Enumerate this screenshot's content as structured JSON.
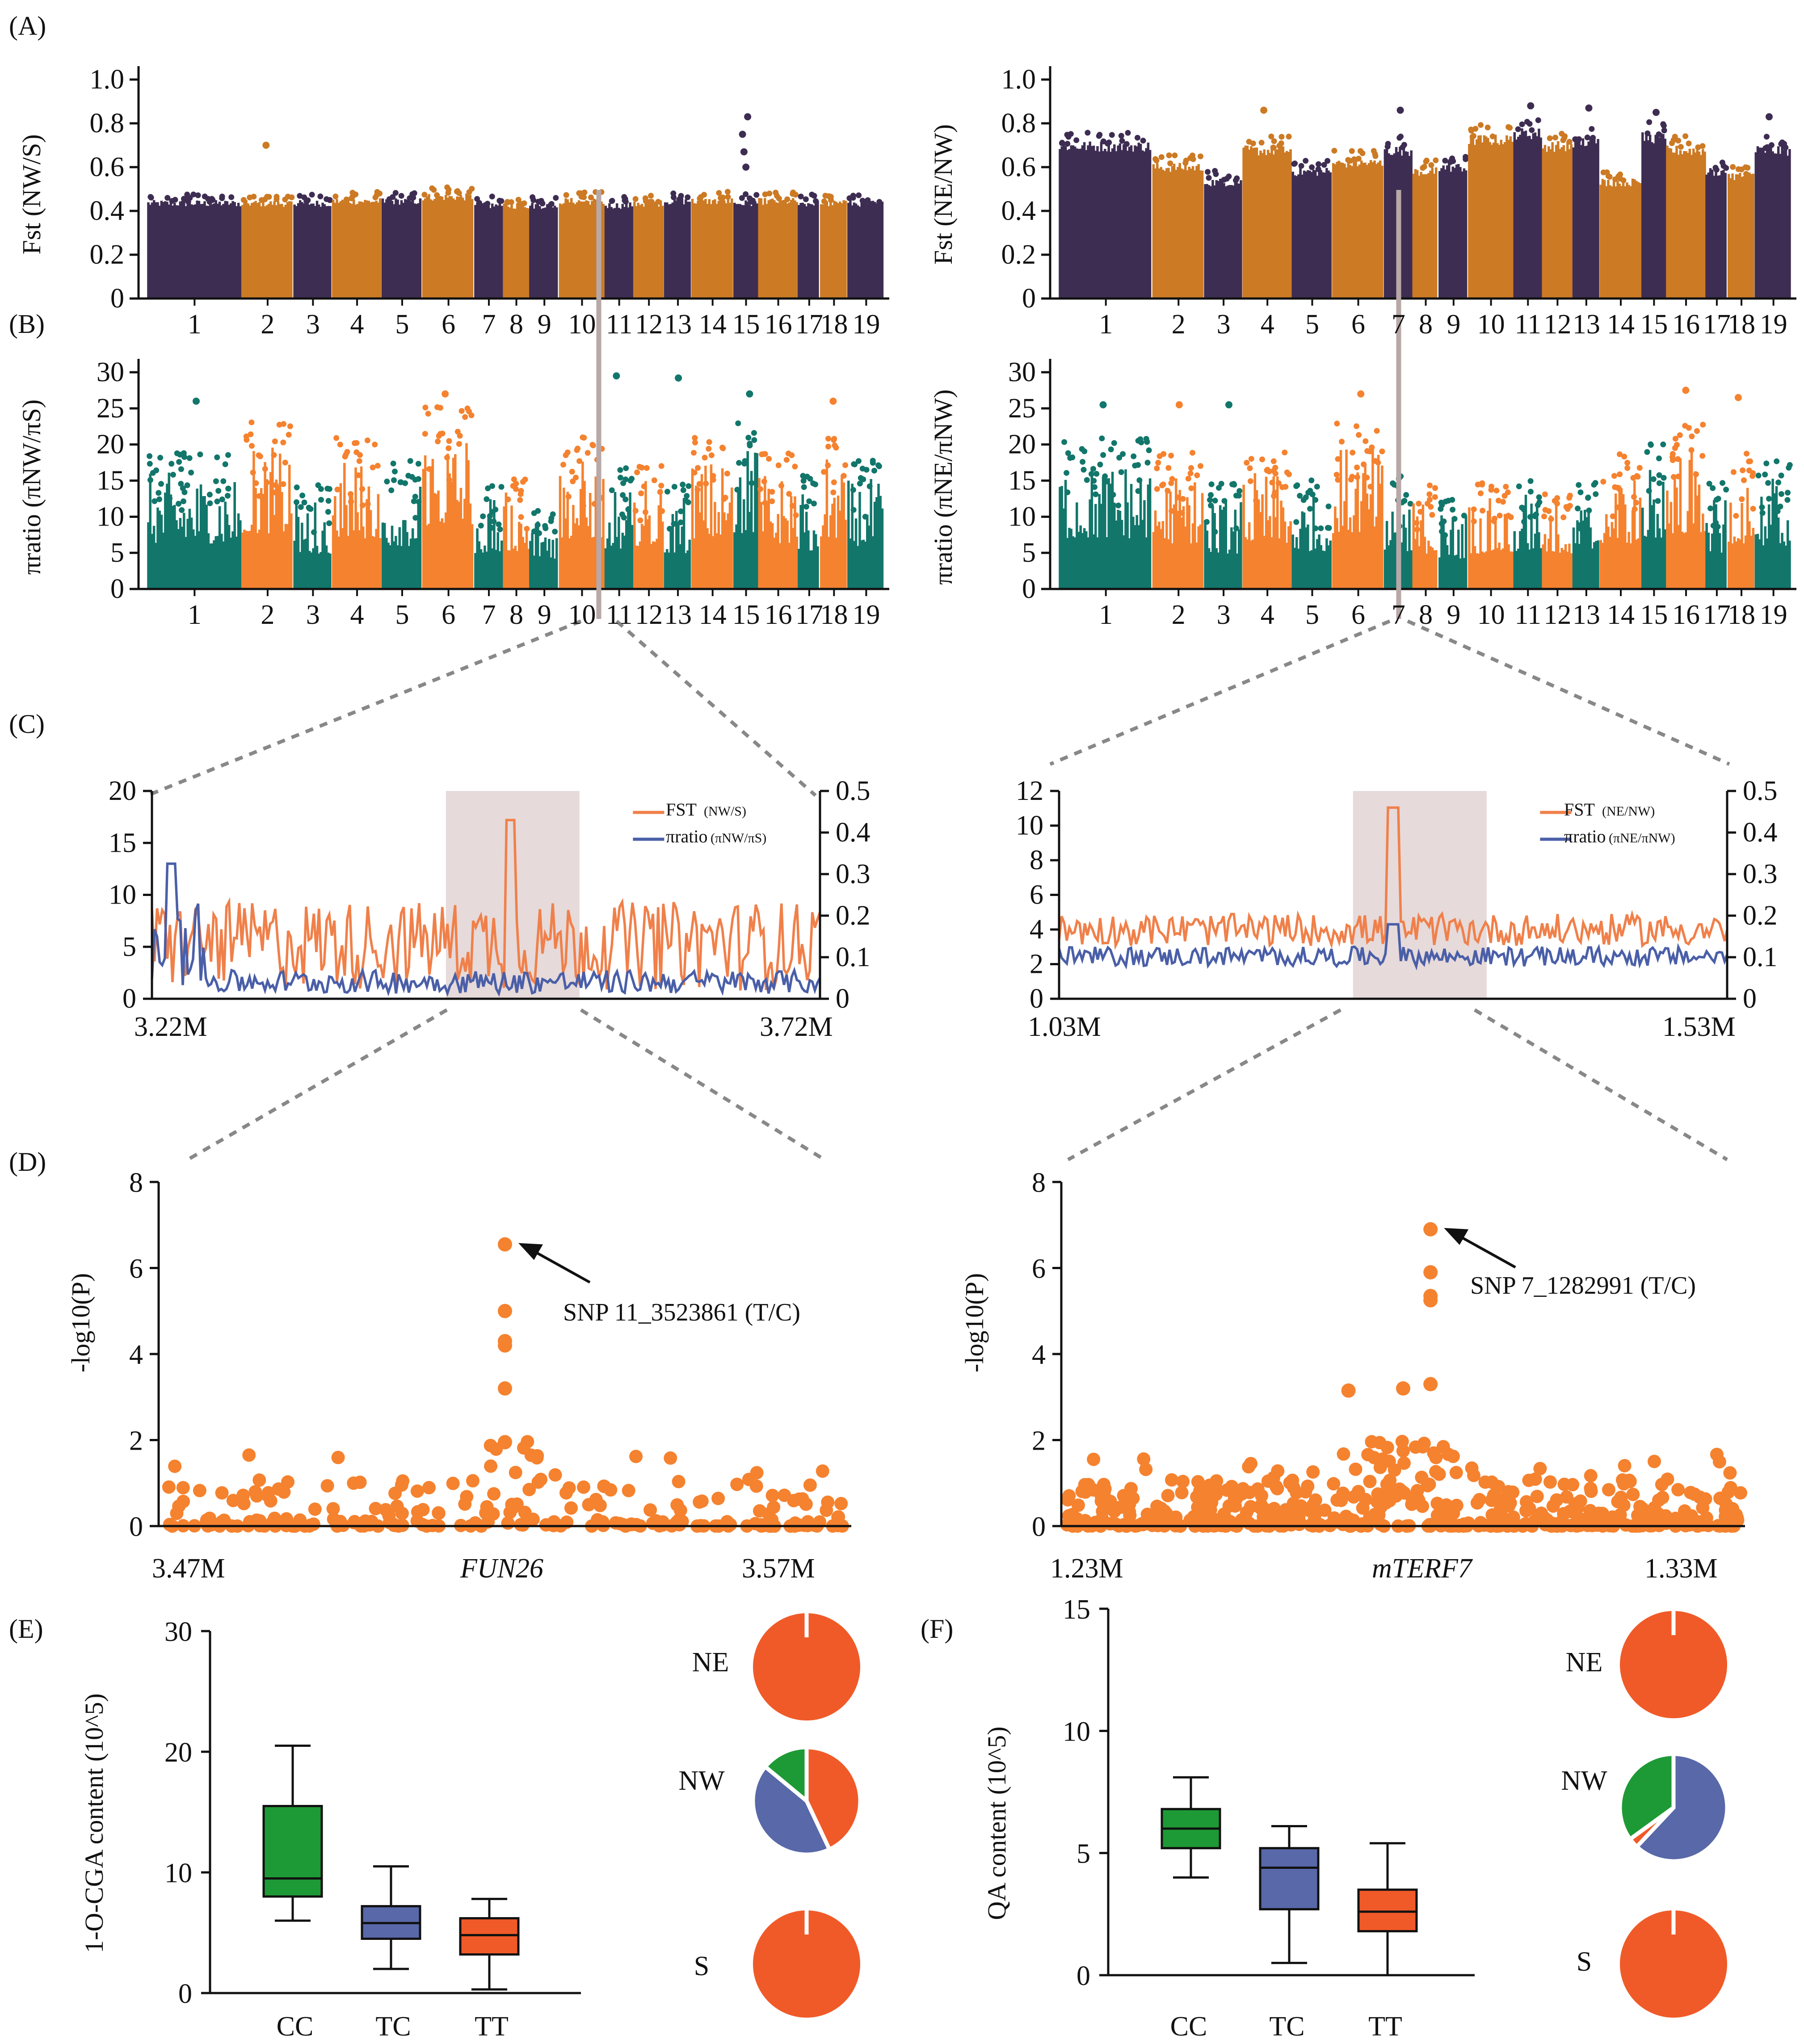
{
  "colors": {
    "dark_purple": "#3e2d52",
    "ochre": "#cc7a24",
    "teal": "#12766b",
    "orange": "#f5822f",
    "line_orange": "#f0804a",
    "line_blue": "#4a5fa8",
    "box_green": "#1d9a35",
    "box_blue": "#5868a8",
    "box_orange": "#f05a28",
    "highlight": "#e6dada",
    "guide": "#b8a8a8"
  },
  "chart_data": [
    {
      "id": "A-left",
      "panel_label": "(A)",
      "type": "scatter",
      "ylabel": "Fst (NW/S)",
      "ylim": [
        0,
        1.0
      ],
      "yticks": [
        "0",
        "0.2",
        "0.4",
        "0.6",
        "0.8",
        "1.0"
      ],
      "chromosomes": [
        "1",
        "2",
        "3",
        "4",
        "5",
        "6",
        "7",
        "8",
        "9",
        "10",
        "11",
        "12",
        "13",
        "14",
        "15",
        "16",
        "17",
        "18",
        "19"
      ],
      "chrom_widths": [
        1.9,
        1.05,
        0.78,
        1.0,
        0.82,
        1.05,
        0.58,
        0.53,
        0.6,
        0.92,
        0.58,
        0.62,
        0.55,
        0.85,
        0.5,
        0.8,
        0.45,
        0.55,
        0.75
      ],
      "baseline": [
        0.45,
        0.45,
        0.45,
        0.46,
        0.46,
        0.48,
        0.44,
        0.44,
        0.44,
        0.46,
        0.44,
        0.45,
        0.46,
        0.46,
        0.45,
        0.46,
        0.45,
        0.45,
        0.45
      ],
      "outliers": [
        {
          "chr": "2",
          "value": 0.7
        },
        {
          "chr": "15",
          "value": 0.83
        },
        {
          "chr": "15",
          "value": 0.75
        },
        {
          "chr": "15",
          "value": 0.67
        },
        {
          "chr": "15",
          "value": 0.6
        }
      ],
      "palette": [
        "dark_purple",
        "ochre"
      ]
    },
    {
      "id": "A-right",
      "type": "scatter",
      "ylabel": "Fst (NE/NW)",
      "ylim": [
        0,
        1.0
      ],
      "yticks": [
        "0",
        "0.2",
        "0.4",
        "0.6",
        "0.8",
        "1.0"
      ],
      "chromosomes": [
        "1",
        "2",
        "3",
        "4",
        "5",
        "6",
        "7",
        "8",
        "9",
        "10",
        "11",
        "12",
        "13",
        "14",
        "15",
        "16",
        "17",
        "18",
        "19"
      ],
      "chrom_widths": [
        1.9,
        1.05,
        0.78,
        1.0,
        0.82,
        1.05,
        0.58,
        0.53,
        0.6,
        0.92,
        0.58,
        0.62,
        0.55,
        0.85,
        0.5,
        0.8,
        0.45,
        0.55,
        0.75
      ],
      "baseline": [
        0.72,
        0.62,
        0.55,
        0.7,
        0.6,
        0.64,
        0.7,
        0.6,
        0.62,
        0.75,
        0.78,
        0.72,
        0.74,
        0.55,
        0.76,
        0.7,
        0.6,
        0.58,
        0.7
      ],
      "outliers": [
        {
          "chr": "4",
          "value": 0.86
        },
        {
          "chr": "7",
          "value": 0.86
        },
        {
          "chr": "11",
          "value": 0.88
        },
        {
          "chr": "13",
          "value": 0.87
        },
        {
          "chr": "15",
          "value": 0.85
        },
        {
          "chr": "19",
          "value": 0.83
        }
      ],
      "palette": [
        "dark_purple",
        "ochre"
      ]
    },
    {
      "id": "B-left",
      "panel_label": "(B)",
      "type": "scatter",
      "ylabel": "πratio  (πNW/πS)",
      "ylim": [
        0,
        30
      ],
      "yticks": [
        "0",
        "5",
        "10",
        "15",
        "20",
        "25",
        "30"
      ],
      "chromosomes": [
        "1",
        "2",
        "3",
        "4",
        "5",
        "6",
        "7",
        "8",
        "9",
        "10",
        "11",
        "12",
        "13",
        "14",
        "15",
        "16",
        "17",
        "18",
        "19"
      ],
      "chrom_widths": [
        1.9,
        1.05,
        0.78,
        1.0,
        0.82,
        1.05,
        0.58,
        0.53,
        0.6,
        0.92,
        0.58,
        0.62,
        0.55,
        0.85,
        0.5,
        0.8,
        0.45,
        0.55,
        0.75
      ],
      "baseline": [
        18,
        22,
        14,
        20,
        17,
        25,
        14,
        15,
        12,
        20,
        16,
        17,
        14,
        20,
        22,
        18,
        15,
        20,
        17
      ],
      "outliers": [
        {
          "chr": "11",
          "value": 29.5
        },
        {
          "chr": "13",
          "value": 29.2
        },
        {
          "chr": "6",
          "value": 27
        },
        {
          "chr": "15",
          "value": 27
        },
        {
          "chr": "1",
          "value": 26
        },
        {
          "chr": "18",
          "value": 26
        }
      ],
      "palette": [
        "teal",
        "orange"
      ]
    },
    {
      "id": "B-right",
      "type": "scatter",
      "ylabel": "πratio  (πNE/πNW)",
      "ylim": [
        0,
        30
      ],
      "yticks": [
        "0",
        "5",
        "10",
        "15",
        "20",
        "25",
        "30"
      ],
      "chromosomes": [
        "1",
        "2",
        "3",
        "4",
        "5",
        "6",
        "7",
        "8",
        "9",
        "10",
        "11",
        "12",
        "13",
        "14",
        "15",
        "16",
        "17",
        "18",
        "19"
      ],
      "chrom_widths": [
        1.9,
        1.05,
        0.78,
        1.0,
        0.82,
        1.05,
        0.58,
        0.53,
        0.6,
        0.92,
        0.58,
        0.62,
        0.55,
        0.85,
        0.5,
        0.8,
        0.45,
        0.55,
        0.75
      ],
      "baseline": [
        20,
        18,
        14,
        18,
        15,
        22,
        15,
        14,
        12,
        14,
        15,
        14,
        14,
        18,
        20,
        22,
        14,
        18,
        17
      ],
      "outliers": [
        {
          "chr": "6",
          "value": 27
        },
        {
          "chr": "16",
          "value": 27.5
        },
        {
          "chr": "18",
          "value": 26.5
        },
        {
          "chr": "1",
          "value": 25.5
        },
        {
          "chr": "2",
          "value": 25.5
        },
        {
          "chr": "3",
          "value": 25.5
        }
      ],
      "palette": [
        "teal",
        "orange"
      ]
    },
    {
      "id": "C-left",
      "panel_label": "(C)",
      "type": "line",
      "xlabels": [
        "3.22M",
        "3.72M"
      ],
      "yticks_left": [
        "0",
        "5",
        "10",
        "15",
        "20"
      ],
      "ylim_left": [
        0,
        20
      ],
      "yticks_right": [
        "0",
        "0.1",
        "0.2",
        "0.3",
        "0.4",
        "0.5"
      ],
      "ylim_right": [
        0,
        0.5
      ],
      "highlight": [
        0.44,
        0.64
      ],
      "series": [
        {
          "name": "FST",
          "legend_main": "FST",
          "legend_sub": "(NW/S)",
          "color": "line_orange",
          "axis": "right",
          "peak": 0.43,
          "peak_at": 0.535,
          "base": 0.18
        },
        {
          "name": "πratio",
          "legend_main": "πratio",
          "legend_sub": "(πNW/πS)",
          "color": "line_blue",
          "axis": "left",
          "peak": 13,
          "peak_at": 0.03,
          "base": 2.5
        }
      ]
    },
    {
      "id": "C-right",
      "type": "line",
      "xlabels": [
        "1.03M",
        "1.53M"
      ],
      "yticks_left": [
        "0",
        "2",
        "4",
        "6",
        "8",
        "10",
        "12"
      ],
      "ylim_left": [
        0,
        12
      ],
      "yticks_right": [
        "0",
        "0.1",
        "0.2",
        "0.3",
        "0.4",
        "0.5"
      ],
      "ylim_right": [
        0,
        0.5
      ],
      "highlight": [
        0.44,
        0.64
      ],
      "series": [
        {
          "name": "FST",
          "legend_main": "FST",
          "legend_sub": "(NE/NW)",
          "color": "line_orange",
          "axis": "right",
          "peak": 0.46,
          "peak_at": 0.5,
          "base": 0.17
        },
        {
          "name": "πratio",
          "legend_main": "πratio",
          "legend_sub": "(πNE/πNW)",
          "color": "line_blue",
          "axis": "left",
          "peak": 4.3,
          "peak_at": 0.5,
          "base": 2.5
        }
      ]
    },
    {
      "id": "D-left",
      "panel_label": "(D)",
      "type": "scatter",
      "ylabel": "-log10(P)",
      "ylim": [
        0,
        8
      ],
      "yticks": [
        "0",
        "2",
        "4",
        "6",
        "8"
      ],
      "xlabels": [
        "3.47M",
        "3.57M"
      ],
      "gene": "FUN26",
      "annotation": "SNP 11_3523861 (T/C)",
      "top_hits": [
        {
          "x": 0.5,
          "y": 6.55
        },
        {
          "x": 0.5,
          "y": 5.0
        },
        {
          "x": 0.5,
          "y": 4.3
        },
        {
          "x": 0.5,
          "y": 4.2
        },
        {
          "x": 0.5,
          "y": 3.2
        },
        {
          "x": 0.5,
          "y": 1.95
        }
      ]
    },
    {
      "id": "D-right",
      "type": "scatter",
      "ylabel": "-log10(P)",
      "ylim": [
        0,
        8
      ],
      "yticks": [
        "0",
        "2",
        "4",
        "6",
        "8"
      ],
      "xlabels": [
        "1.23M",
        "1.33M"
      ],
      "gene": "mTERF7",
      "annotation": "SNP 7_1282991 (T/C)",
      "top_hits": [
        {
          "x": 0.54,
          "y": 6.9
        },
        {
          "x": 0.54,
          "y": 5.9
        },
        {
          "x": 0.54,
          "y": 5.35
        },
        {
          "x": 0.54,
          "y": 5.25
        },
        {
          "x": 0.5,
          "y": 3.2
        },
        {
          "x": 0.42,
          "y": 3.15
        },
        {
          "x": 0.54,
          "y": 3.3
        }
      ]
    },
    {
      "id": "E-box",
      "panel_label": "(E)",
      "type": "box",
      "ylabel": "1-O-CGA content (10^5)",
      "ylim": [
        0,
        30
      ],
      "yticks": [
        "0",
        "10",
        "20",
        "30"
      ],
      "categories": [
        "CC",
        "TC",
        "TT"
      ],
      "boxes": [
        {
          "min": 6,
          "q1": 8,
          "median": 9.5,
          "q3": 15.5,
          "max": 20.5,
          "color": "box_green"
        },
        {
          "min": 2,
          "q1": 4.5,
          "median": 5.8,
          "q3": 7.2,
          "max": 10.5,
          "color": "box_blue"
        },
        {
          "min": 0.3,
          "q1": 3.2,
          "median": 4.8,
          "q3": 6.2,
          "max": 7.8,
          "color": "box_orange"
        }
      ]
    },
    {
      "id": "E-pies",
      "type": "pie",
      "groups": [
        {
          "label": "NE",
          "slices": [
            {
              "name": "TT",
              "value": 1.0,
              "color": "box_orange"
            }
          ]
        },
        {
          "label": "NW",
          "slices": [
            {
              "name": "TT",
              "value": 0.43,
              "color": "box_orange"
            },
            {
              "name": "TC",
              "value": 0.43,
              "color": "box_blue"
            },
            {
              "name": "CC",
              "value": 0.14,
              "color": "box_green"
            }
          ]
        },
        {
          "label": "S",
          "slices": [
            {
              "name": "TT",
              "value": 1.0,
              "color": "box_orange"
            }
          ]
        }
      ]
    },
    {
      "id": "F-box",
      "panel_label": "(F)",
      "type": "box",
      "ylabel": "QA content (10^5)",
      "ylim": [
        0,
        15
      ],
      "yticks": [
        "0",
        "5",
        "10",
        "15"
      ],
      "categories": [
        "CC",
        "TC",
        "TT"
      ],
      "boxes": [
        {
          "min": 4,
          "q1": 5.2,
          "median": 6,
          "q3": 6.8,
          "max": 8.1,
          "color": "box_green"
        },
        {
          "min": 0.5,
          "q1": 2.7,
          "median": 4.4,
          "q3": 5.2,
          "max": 6.1,
          "color": "box_blue"
        },
        {
          "min": 0,
          "q1": 1.8,
          "median": 2.6,
          "q3": 3.5,
          "max": 5.4,
          "color": "box_orange"
        }
      ]
    },
    {
      "id": "F-pies",
      "type": "pie",
      "groups": [
        {
          "label": "NE",
          "slices": [
            {
              "name": "TT",
              "value": 1.0,
              "color": "box_orange"
            }
          ]
        },
        {
          "label": "NW",
          "slices": [
            {
              "name": "TC",
              "value": 0.62,
              "color": "box_blue"
            },
            {
              "name": "TT",
              "value": 0.03,
              "color": "box_orange"
            },
            {
              "name": "CC",
              "value": 0.35,
              "color": "box_green"
            }
          ]
        },
        {
          "label": "S",
          "slices": [
            {
              "name": "TT",
              "value": 1.0,
              "color": "box_orange"
            }
          ]
        }
      ]
    }
  ]
}
